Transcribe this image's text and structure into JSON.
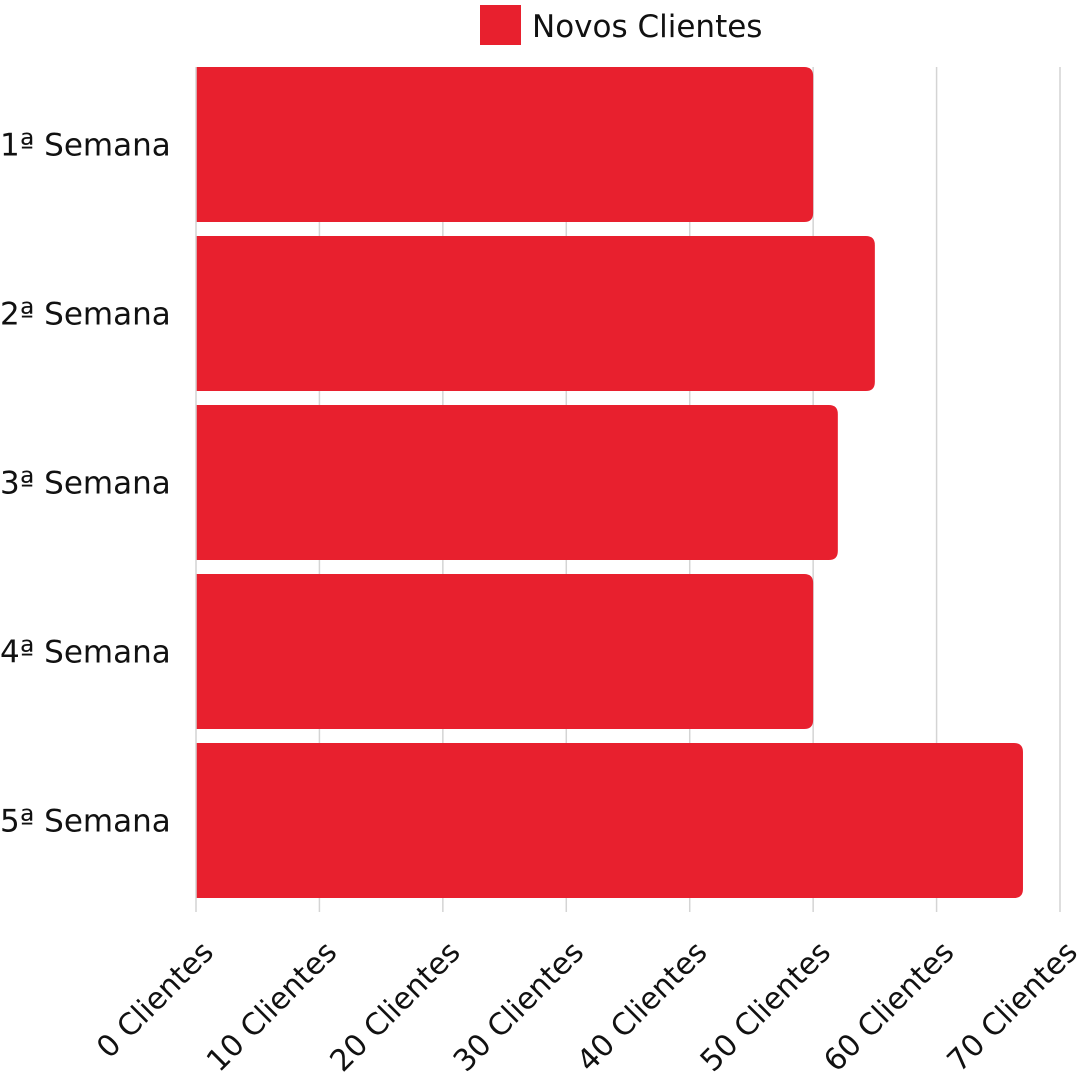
{
  "chart_data": {
    "type": "bar",
    "orientation": "horizontal",
    "categories": [
      "1ª Semana",
      "2ª Semana",
      "3ª Semana",
      "4ª Semana",
      "5ª Semana"
    ],
    "series": [
      {
        "name": "Novos Clientes",
        "values": [
          50,
          55,
          52,
          50,
          67
        ]
      }
    ],
    "xlim": [
      0,
      70
    ],
    "x_ticks": [
      0,
      10,
      20,
      30,
      40,
      50,
      60,
      70
    ],
    "x_tick_labels": [
      "0 Clientes",
      "10 Clientes",
      "20 Clientes",
      "30 Clientes",
      "40 Clientes",
      "50 Clientes",
      "60 Clientes",
      "70 Clientes"
    ],
    "grid": true,
    "legend_position": "top-center",
    "bar_color": "#E8202E",
    "grid_color": "#D4D4D4"
  }
}
